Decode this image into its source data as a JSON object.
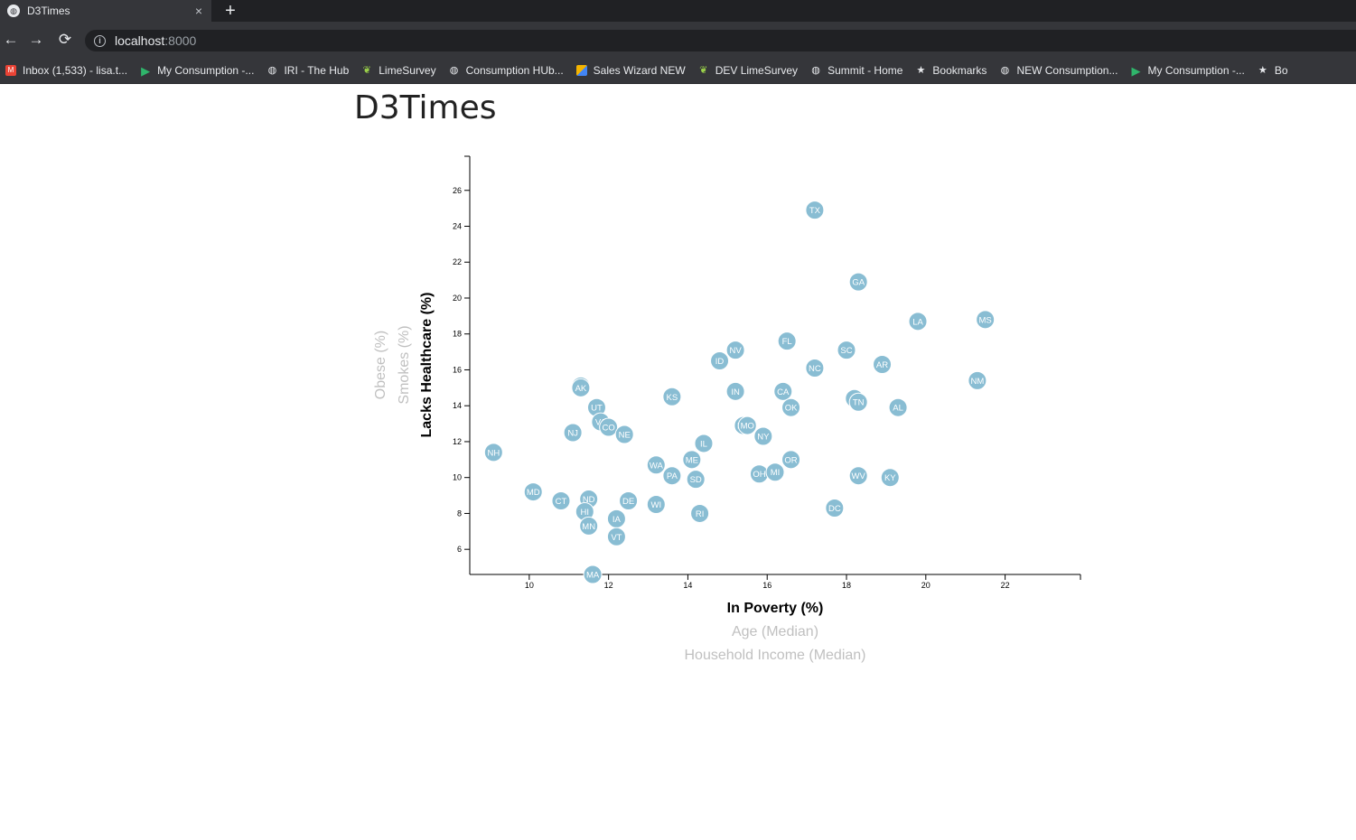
{
  "browser": {
    "tab_title": "D3Times",
    "tab_close": "×",
    "new_tab": "+",
    "back": "←",
    "forward": "→",
    "reload": "⟳",
    "url_host": "localhost",
    "url_port": ":8000",
    "bookmarks": [
      {
        "label": "Inbox (1,533) - lisa.t...",
        "icon": "gmail-icon"
      },
      {
        "label": "My Consumption -...",
        "icon": "play-icon"
      },
      {
        "label": "IRI - The Hub",
        "icon": "globe-icon"
      },
      {
        "label": "LimeSurvey",
        "icon": "lime-icon"
      },
      {
        "label": "Consumption HUb...",
        "icon": "globe-icon"
      },
      {
        "label": "Sales Wizard NEW",
        "icon": "wizard-icon"
      },
      {
        "label": "DEV LimeSurvey",
        "icon": "lime-icon"
      },
      {
        "label": "Summit - Home",
        "icon": "globe-icon"
      },
      {
        "label": "Bookmarks",
        "icon": "star-icon"
      },
      {
        "label": "NEW Consumption...",
        "icon": "globe-icon"
      },
      {
        "label": "My Consumption -...",
        "icon": "play-icon"
      },
      {
        "label": "Bo",
        "icon": "star-icon"
      }
    ]
  },
  "page": {
    "title": "D3Times"
  },
  "colors": {
    "circle": "#89bdd3",
    "active_label": "#000000",
    "inactive_label": "#c0c0c0"
  },
  "chart_data": {
    "type": "scatter",
    "title": "",
    "xlim": [
      8.5,
      23.9
    ],
    "ylim": [
      4.6,
      27.9
    ],
    "x_ticks": [
      10,
      12,
      14,
      16,
      18,
      20,
      22
    ],
    "y_ticks": [
      6,
      8,
      10,
      12,
      14,
      16,
      18,
      20,
      22,
      24,
      26
    ],
    "x_labels": [
      {
        "text": "In Poverty (%)",
        "active": true
      },
      {
        "text": "Age (Median)",
        "active": false
      },
      {
        "text": "Household Income (Median)",
        "active": false
      }
    ],
    "y_labels": [
      {
        "text": "Lacks Healthcare (%)",
        "active": true
      },
      {
        "text": "Smokes (%)",
        "active": false
      },
      {
        "text": "Obese (%)",
        "active": false
      }
    ],
    "points": [
      {
        "abbr": "TX",
        "x": 17.2,
        "y": 24.9
      },
      {
        "abbr": "GA",
        "x": 18.3,
        "y": 20.9
      },
      {
        "abbr": "LA",
        "x": 19.8,
        "y": 18.7
      },
      {
        "abbr": "MS",
        "x": 21.5,
        "y": 18.8
      },
      {
        "abbr": "FL",
        "x": 16.5,
        "y": 17.6
      },
      {
        "abbr": "NV",
        "x": 15.2,
        "y": 17.1
      },
      {
        "abbr": "SC",
        "x": 18.0,
        "y": 17.1
      },
      {
        "abbr": "ID",
        "x": 14.8,
        "y": 16.5
      },
      {
        "abbr": "AR",
        "x": 18.9,
        "y": 16.3
      },
      {
        "abbr": "NC",
        "x": 17.2,
        "y": 16.1
      },
      {
        "abbr": "NM",
        "x": 21.3,
        "y": 15.4
      },
      {
        "abbr": "WY",
        "x": 11.3,
        "y": 15.1
      },
      {
        "abbr": "AK",
        "x": 11.3,
        "y": 15.0
      },
      {
        "abbr": "IN",
        "x": 15.2,
        "y": 14.8
      },
      {
        "abbr": "CA",
        "x": 16.4,
        "y": 14.8
      },
      {
        "abbr": "KS",
        "x": 13.6,
        "y": 14.5
      },
      {
        "abbr": "AZ",
        "x": 18.2,
        "y": 14.4
      },
      {
        "abbr": "TN",
        "x": 18.3,
        "y": 14.2
      },
      {
        "abbr": "OK",
        "x": 16.6,
        "y": 13.9
      },
      {
        "abbr": "AL",
        "x": 19.3,
        "y": 13.9
      },
      {
        "abbr": "UT",
        "x": 11.7,
        "y": 13.9
      },
      {
        "abbr": "VA",
        "x": 11.8,
        "y": 13.1
      },
      {
        "abbr": "MT",
        "x": 15.4,
        "y": 12.9
      },
      {
        "abbr": "MO",
        "x": 15.5,
        "y": 12.9
      },
      {
        "abbr": "CO",
        "x": 12.0,
        "y": 12.8
      },
      {
        "abbr": "NJ",
        "x": 11.1,
        "y": 12.5
      },
      {
        "abbr": "NE",
        "x": 12.4,
        "y": 12.4
      },
      {
        "abbr": "NY",
        "x": 15.9,
        "y": 12.3
      },
      {
        "abbr": "IL",
        "x": 14.4,
        "y": 11.9
      },
      {
        "abbr": "NH",
        "x": 9.1,
        "y": 11.4
      },
      {
        "abbr": "ME",
        "x": 14.1,
        "y": 11.0
      },
      {
        "abbr": "OR",
        "x": 16.6,
        "y": 11.0
      },
      {
        "abbr": "WA",
        "x": 13.2,
        "y": 10.7
      },
      {
        "abbr": "PA",
        "x": 13.6,
        "y": 10.1
      },
      {
        "abbr": "OH",
        "x": 15.8,
        "y": 10.2
      },
      {
        "abbr": "MI",
        "x": 16.2,
        "y": 10.3
      },
      {
        "abbr": "WV",
        "x": 18.3,
        "y": 10.1
      },
      {
        "abbr": "SD",
        "x": 14.2,
        "y": 9.9
      },
      {
        "abbr": "KY",
        "x": 19.1,
        "y": 10.0
      },
      {
        "abbr": "MD",
        "x": 10.1,
        "y": 9.2
      },
      {
        "abbr": "CT",
        "x": 10.8,
        "y": 8.7
      },
      {
        "abbr": "ND",
        "x": 11.5,
        "y": 8.8
      },
      {
        "abbr": "DE",
        "x": 12.5,
        "y": 8.7
      },
      {
        "abbr": "WI",
        "x": 13.2,
        "y": 8.5
      },
      {
        "abbr": "DC",
        "x": 17.7,
        "y": 8.3
      },
      {
        "abbr": "HI",
        "x": 11.4,
        "y": 8.1
      },
      {
        "abbr": "RI",
        "x": 14.3,
        "y": 8.0
      },
      {
        "abbr": "IA",
        "x": 12.2,
        "y": 7.7
      },
      {
        "abbr": "MN",
        "x": 11.5,
        "y": 7.3
      },
      {
        "abbr": "VT",
        "x": 12.2,
        "y": 6.7
      },
      {
        "abbr": "MA",
        "x": 11.6,
        "y": 4.6
      }
    ]
  }
}
